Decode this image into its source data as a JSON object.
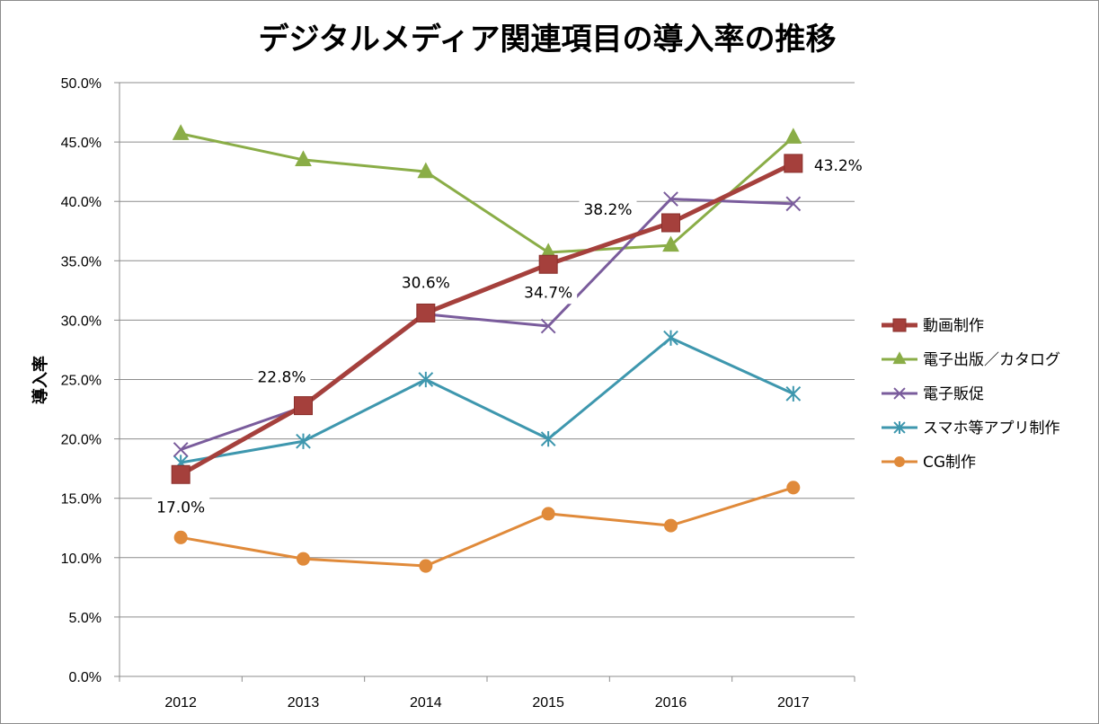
{
  "chart_data": {
    "type": "line",
    "title": "デジタルメディア関連項目の導入率の推移",
    "xlabel": "",
    "ylabel": "導入率",
    "categories": [
      "2012",
      "2013",
      "2014",
      "2015",
      "2016",
      "2017"
    ],
    "ylim": [
      0,
      50
    ],
    "yticks": [
      "0.0%",
      "5.0%",
      "10.0%",
      "15.0%",
      "20.0%",
      "25.0%",
      "30.0%",
      "35.0%",
      "40.0%",
      "45.0%",
      "50.0%"
    ],
    "grid": true,
    "legend_position": "right",
    "series": [
      {
        "name": "動画制作",
        "color": "#A5403C",
        "marker": "square",
        "values": [
          17.0,
          22.8,
          30.6,
          34.7,
          38.2,
          43.2
        ],
        "labels": [
          "17.0%",
          "22.8%",
          "30.6%",
          "34.7%",
          "38.2%",
          "43.2%"
        ]
      },
      {
        "name": "電子出版／カタログ",
        "color": "#8AAD47",
        "marker": "triangle",
        "values": [
          45.7,
          43.5,
          42.5,
          35.7,
          36.3,
          45.4
        ]
      },
      {
        "name": "電子販促",
        "color": "#7A5C9C",
        "marker": "x",
        "values": [
          19.1,
          22.7,
          30.5,
          29.5,
          40.2,
          39.8
        ]
      },
      {
        "name": "スマホ等アプリ制作",
        "color": "#3E97AE",
        "marker": "asterisk",
        "values": [
          18.0,
          19.8,
          25.0,
          20.0,
          28.5,
          23.8
        ]
      },
      {
        "name": "CG制作",
        "color": "#E08A3A",
        "marker": "circle",
        "values": [
          11.7,
          9.9,
          9.3,
          13.7,
          12.7,
          15.9
        ]
      }
    ]
  }
}
